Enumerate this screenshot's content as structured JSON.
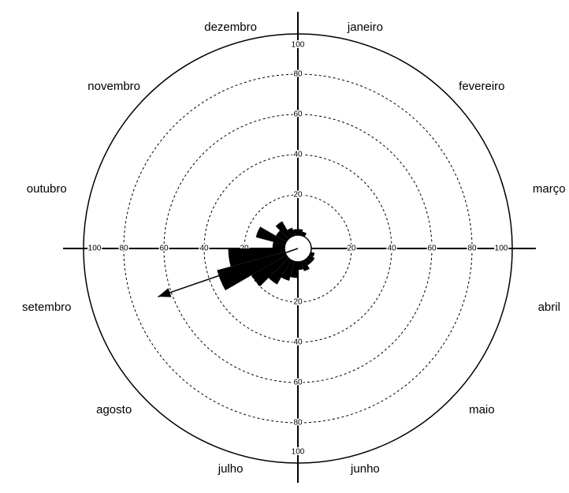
{
  "chart_data": {
    "type": "rose",
    "month_labels": [
      "janeiro",
      "fevereiro",
      "março",
      "abril",
      "maio",
      "junho",
      "julho",
      "agosto",
      "setembro",
      "outubro",
      "novembro",
      "dezembro"
    ],
    "angles": [
      7.5,
      22.5,
      37.5,
      52.5,
      67.5,
      82.5,
      97.5,
      112.5,
      127.5,
      142.5,
      157.5,
      172.5,
      187.5,
      202.5,
      217.5,
      232.5,
      247.5,
      262.5,
      277.5,
      292.5,
      307.5,
      322.5,
      337.5,
      352.5
    ],
    "values": [
      3,
      2,
      0,
      0,
      0,
      0,
      0,
      2,
      3,
      3,
      5,
      4,
      8,
      10,
      14,
      20,
      35,
      28,
      6,
      15,
      6,
      9,
      4,
      3
    ],
    "color": "#000000",
    "rlim": [
      0,
      100
    ],
    "rticks": [
      20,
      40,
      60,
      80,
      100
    ],
    "mean_arrow": {
      "angle": 251,
      "length": 67
    }
  }
}
